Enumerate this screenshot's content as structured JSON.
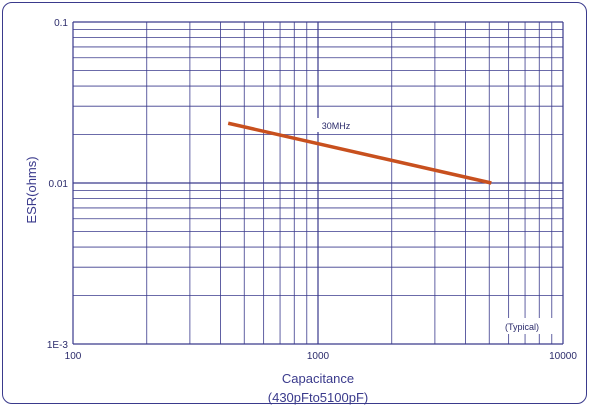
{
  "chart_data": {
    "type": "line",
    "x_scale": "log",
    "y_scale": "log",
    "xlim": [
      100,
      10000
    ],
    "ylim": [
      0.001,
      0.1
    ],
    "x_tick_labels": [
      {
        "value": 100,
        "label": "100"
      },
      {
        "value": 1000,
        "label": "1000"
      },
      {
        "value": 10000,
        "label": "10000"
      }
    ],
    "y_tick_labels": [
      {
        "value": 0.1,
        "label": "0.1"
      },
      {
        "value": 0.01,
        "label": "0.01"
      },
      {
        "value": 0.001,
        "label": "1E-3"
      }
    ],
    "xlabel": "Capacitance",
    "xlabel_sub": "(430pFto5100pF)",
    "ylabel": "ESR(ohms)",
    "grid": true,
    "series": [
      {
        "name": "30MHz",
        "color": "#c8501e",
        "points": [
          {
            "x": 430,
            "y": 0.0235
          },
          {
            "x": 5100,
            "y": 0.01
          }
        ]
      }
    ],
    "annotations": {
      "series_label": "30MHz",
      "note": "(Typical)"
    }
  },
  "colors": {
    "grid": "#3a3a8c",
    "frame": "#3a3a8c",
    "curve": "#c8501e"
  }
}
